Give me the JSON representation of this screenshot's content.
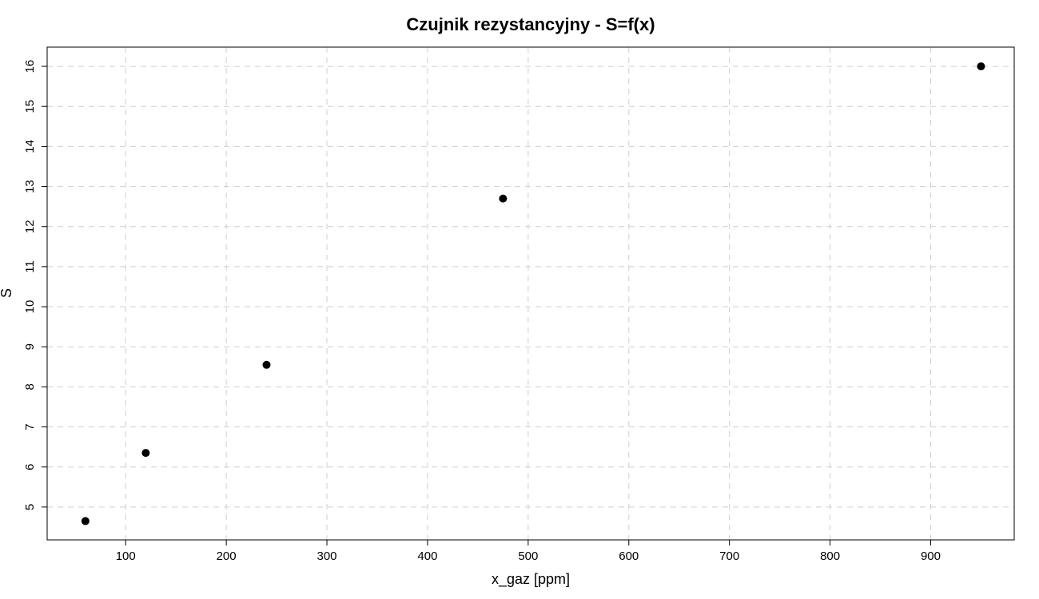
{
  "chart_data": {
    "type": "scatter",
    "title": "Czujnik rezystancyjny - S=f(x)",
    "xlabel": "x_gaz [ppm]",
    "ylabel": "S",
    "xlim": [
      22,
      983
    ],
    "ylim": [
      4.18,
      16.48
    ],
    "xticks": [
      100,
      200,
      300,
      400,
      500,
      600,
      700,
      800,
      900
    ],
    "yticks": [
      5,
      6,
      7,
      8,
      9,
      10,
      11,
      12,
      13,
      14,
      15,
      16
    ],
    "grid": true,
    "points": [
      {
        "x": 60,
        "y": 4.65
      },
      {
        "x": 120,
        "y": 6.35
      },
      {
        "x": 240,
        "y": 8.55
      },
      {
        "x": 475,
        "y": 12.7
      },
      {
        "x": 950,
        "y": 16.0
      }
    ]
  }
}
